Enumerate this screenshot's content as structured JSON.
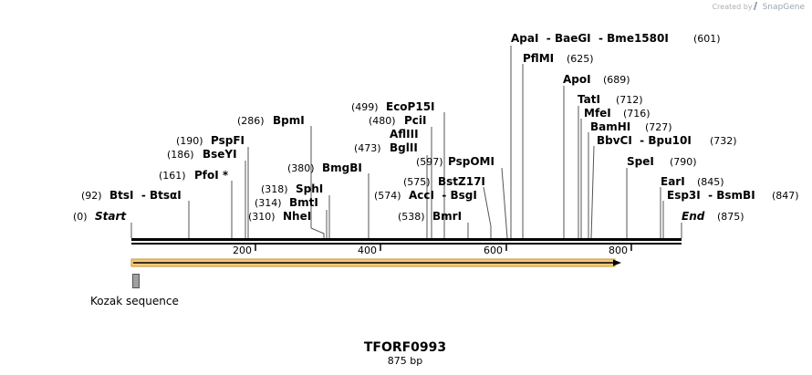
{
  "credit": {
    "prefix": "Created by",
    "brand": "SnapGene"
  },
  "sequence": {
    "name": "TFORF0993",
    "length_label": "875 bp",
    "length": 875
  },
  "ruler": {
    "ticks": [
      200,
      400,
      600,
      800
    ]
  },
  "features": {
    "orf_label": "",
    "kozak_label": "Kozak sequence"
  },
  "sites": [
    {
      "name": "Start",
      "pos": "(0)",
      "bp": 0,
      "italic": true
    },
    {
      "name": "BtsI  - BtsαI",
      "pos": "(92)",
      "bp": 92
    },
    {
      "name": "PfoI *",
      "pos": "(161)",
      "bp": 161
    },
    {
      "name": "BseYI",
      "pos": "(186)",
      "bp": 186
    },
    {
      "name": "PspFI",
      "pos": "(190)",
      "bp": 190
    },
    {
      "name": "BpmI",
      "pos": "(286)",
      "bp": 286
    },
    {
      "name": "NheI",
      "pos": "(310)",
      "bp": 310
    },
    {
      "name": "BmtI",
      "pos": "(314)",
      "bp": 314
    },
    {
      "name": "SphI",
      "pos": "(318)",
      "bp": 318
    },
    {
      "name": "BmgBI",
      "pos": "(380)",
      "bp": 380
    },
    {
      "name": "BglII",
      "pos": "(473)",
      "bp": 473
    },
    {
      "name": "AflIII",
      "pos": "",
      "bp": 480
    },
    {
      "name": "PciI",
      "pos": "(480)",
      "bp": 480
    },
    {
      "name": "EcoP15I",
      "pos": "(499)",
      "bp": 499
    },
    {
      "name": "BmrI",
      "pos": "(538)",
      "bp": 538
    },
    {
      "name": "AccI  - BsgI",
      "pos": "(574)",
      "bp": 574
    },
    {
      "name": "BstZ17I",
      "pos": "(575)",
      "bp": 575
    },
    {
      "name": "PspOMI",
      "pos": "(597)",
      "bp": 597
    },
    {
      "name": "ApaI  - BaeGI  - Bme1580I",
      "pos": "(601)",
      "bp": 601
    },
    {
      "name": "PflMI",
      "pos": "(625)",
      "bp": 625
    },
    {
      "name": "ApoI",
      "pos": "(689)",
      "bp": 689
    },
    {
      "name": "TatI",
      "pos": "(712)",
      "bp": 712
    },
    {
      "name": "MfeI",
      "pos": "(716)",
      "bp": 716
    },
    {
      "name": "BamHI",
      "pos": "(727)",
      "bp": 727
    },
    {
      "name": "BbvCI  - Bpu10I",
      "pos": "(732)",
      "bp": 732
    },
    {
      "name": "SpeI",
      "pos": "(790)",
      "bp": 790
    },
    {
      "name": "EarI",
      "pos": "(845)",
      "bp": 845
    },
    {
      "name": "Esp3I  - BsmBI",
      "pos": "(847)",
      "bp": 847
    },
    {
      "name": "End",
      "pos": "(875)",
      "bp": 875,
      "italic": true
    }
  ]
}
